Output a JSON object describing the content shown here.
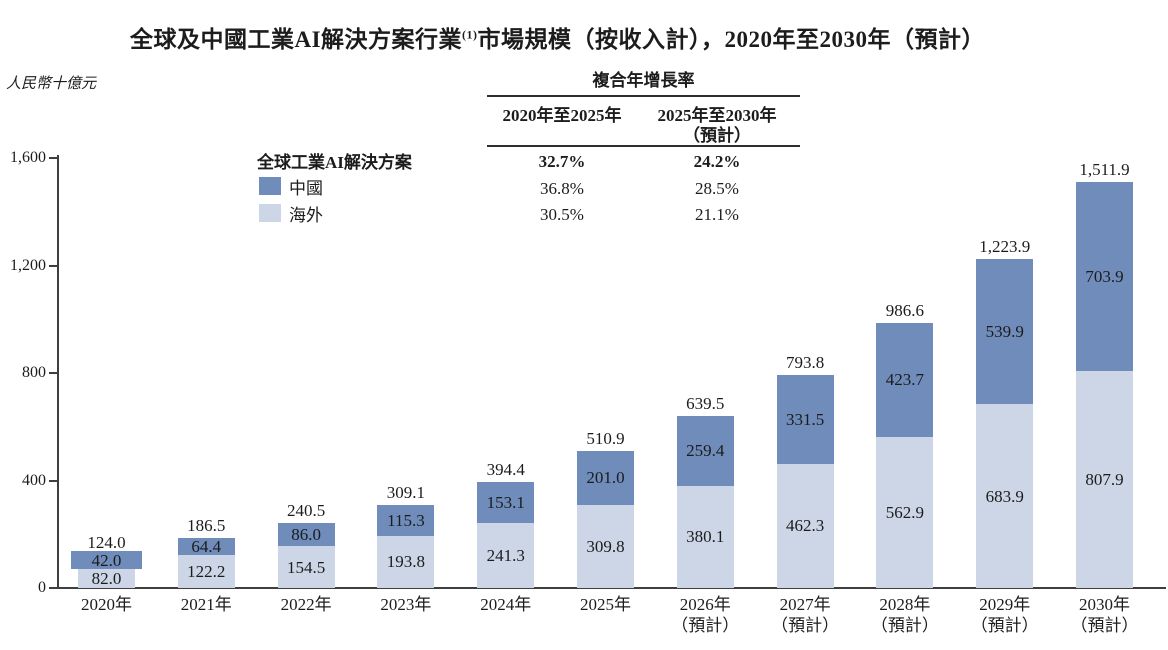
{
  "title": {
    "prefix": "全球及中國工業AI解決方案行業",
    "footnote_marker": "(1)",
    "suffix": "市場規模（按收入計），2020年至2030年（預計）"
  },
  "unit_label": "人民幣十億元",
  "legend": {
    "header": "全球工業AI解決方案",
    "items": [
      {
        "label": "中國",
        "color": "#6f8cba"
      },
      {
        "label": "海外",
        "color": "#ccd6e6"
      }
    ]
  },
  "cagr_table": {
    "header": "複合年增長率",
    "columns": [
      {
        "line1": "2020年至2025年",
        "line2": ""
      },
      {
        "line1": "2025年至2030年",
        "line2": "（預計）"
      }
    ],
    "rows": [
      {
        "values": [
          "32.7%",
          "24.2%"
        ],
        "bold": true
      },
      {
        "values": [
          "36.8%",
          "28.5%"
        ],
        "bold": false
      },
      {
        "values": [
          "30.5%",
          "21.1%"
        ],
        "bold": false
      }
    ]
  },
  "chart_data": {
    "type": "bar",
    "stacked": true,
    "title": "全球及中國工業AI解決方案行業市場規模（按收入計），2020年至2030年（預計）",
    "ylabel": "人民幣十億元",
    "xlabel": "",
    "ylim": [
      0,
      1600
    ],
    "grid": false,
    "legend_position": "upper-left",
    "categories": [
      "2020年",
      "2021年",
      "2022年",
      "2023年",
      "2024年",
      "2025年",
      "2026年",
      "2027年",
      "2028年",
      "2029年",
      "2030年"
    ],
    "category_sublabels": [
      "",
      "",
      "",
      "",
      "",
      "",
      "（預計）",
      "（預計）",
      "（預計）",
      "（預計）",
      "（預計）"
    ],
    "yticks": [
      {
        "value": 0,
        "label": "0"
      },
      {
        "value": 400,
        "label": "400"
      },
      {
        "value": 800,
        "label": "800"
      },
      {
        "value": 1200,
        "label": "1,200"
      },
      {
        "value": 1600,
        "label": "1,600"
      }
    ],
    "series": [
      {
        "name": "中國",
        "color": "#6f8cba",
        "values": [
          42.0,
          64.4,
          86.0,
          115.3,
          153.1,
          201.0,
          259.4,
          331.5,
          423.7,
          539.9,
          703.9
        ]
      },
      {
        "name": "海外",
        "color": "#ccd6e6",
        "values": [
          82.0,
          122.2,
          154.5,
          193.8,
          241.3,
          309.8,
          380.1,
          462.3,
          562.9,
          683.9,
          807.9
        ]
      }
    ],
    "totals_display": [
      "124.0",
      "186.5",
      "240.5",
      "309.1",
      "394.4",
      "510.9",
      "639.5",
      "793.8",
      "986.6",
      "1,223.9",
      "1,511.9"
    ]
  }
}
